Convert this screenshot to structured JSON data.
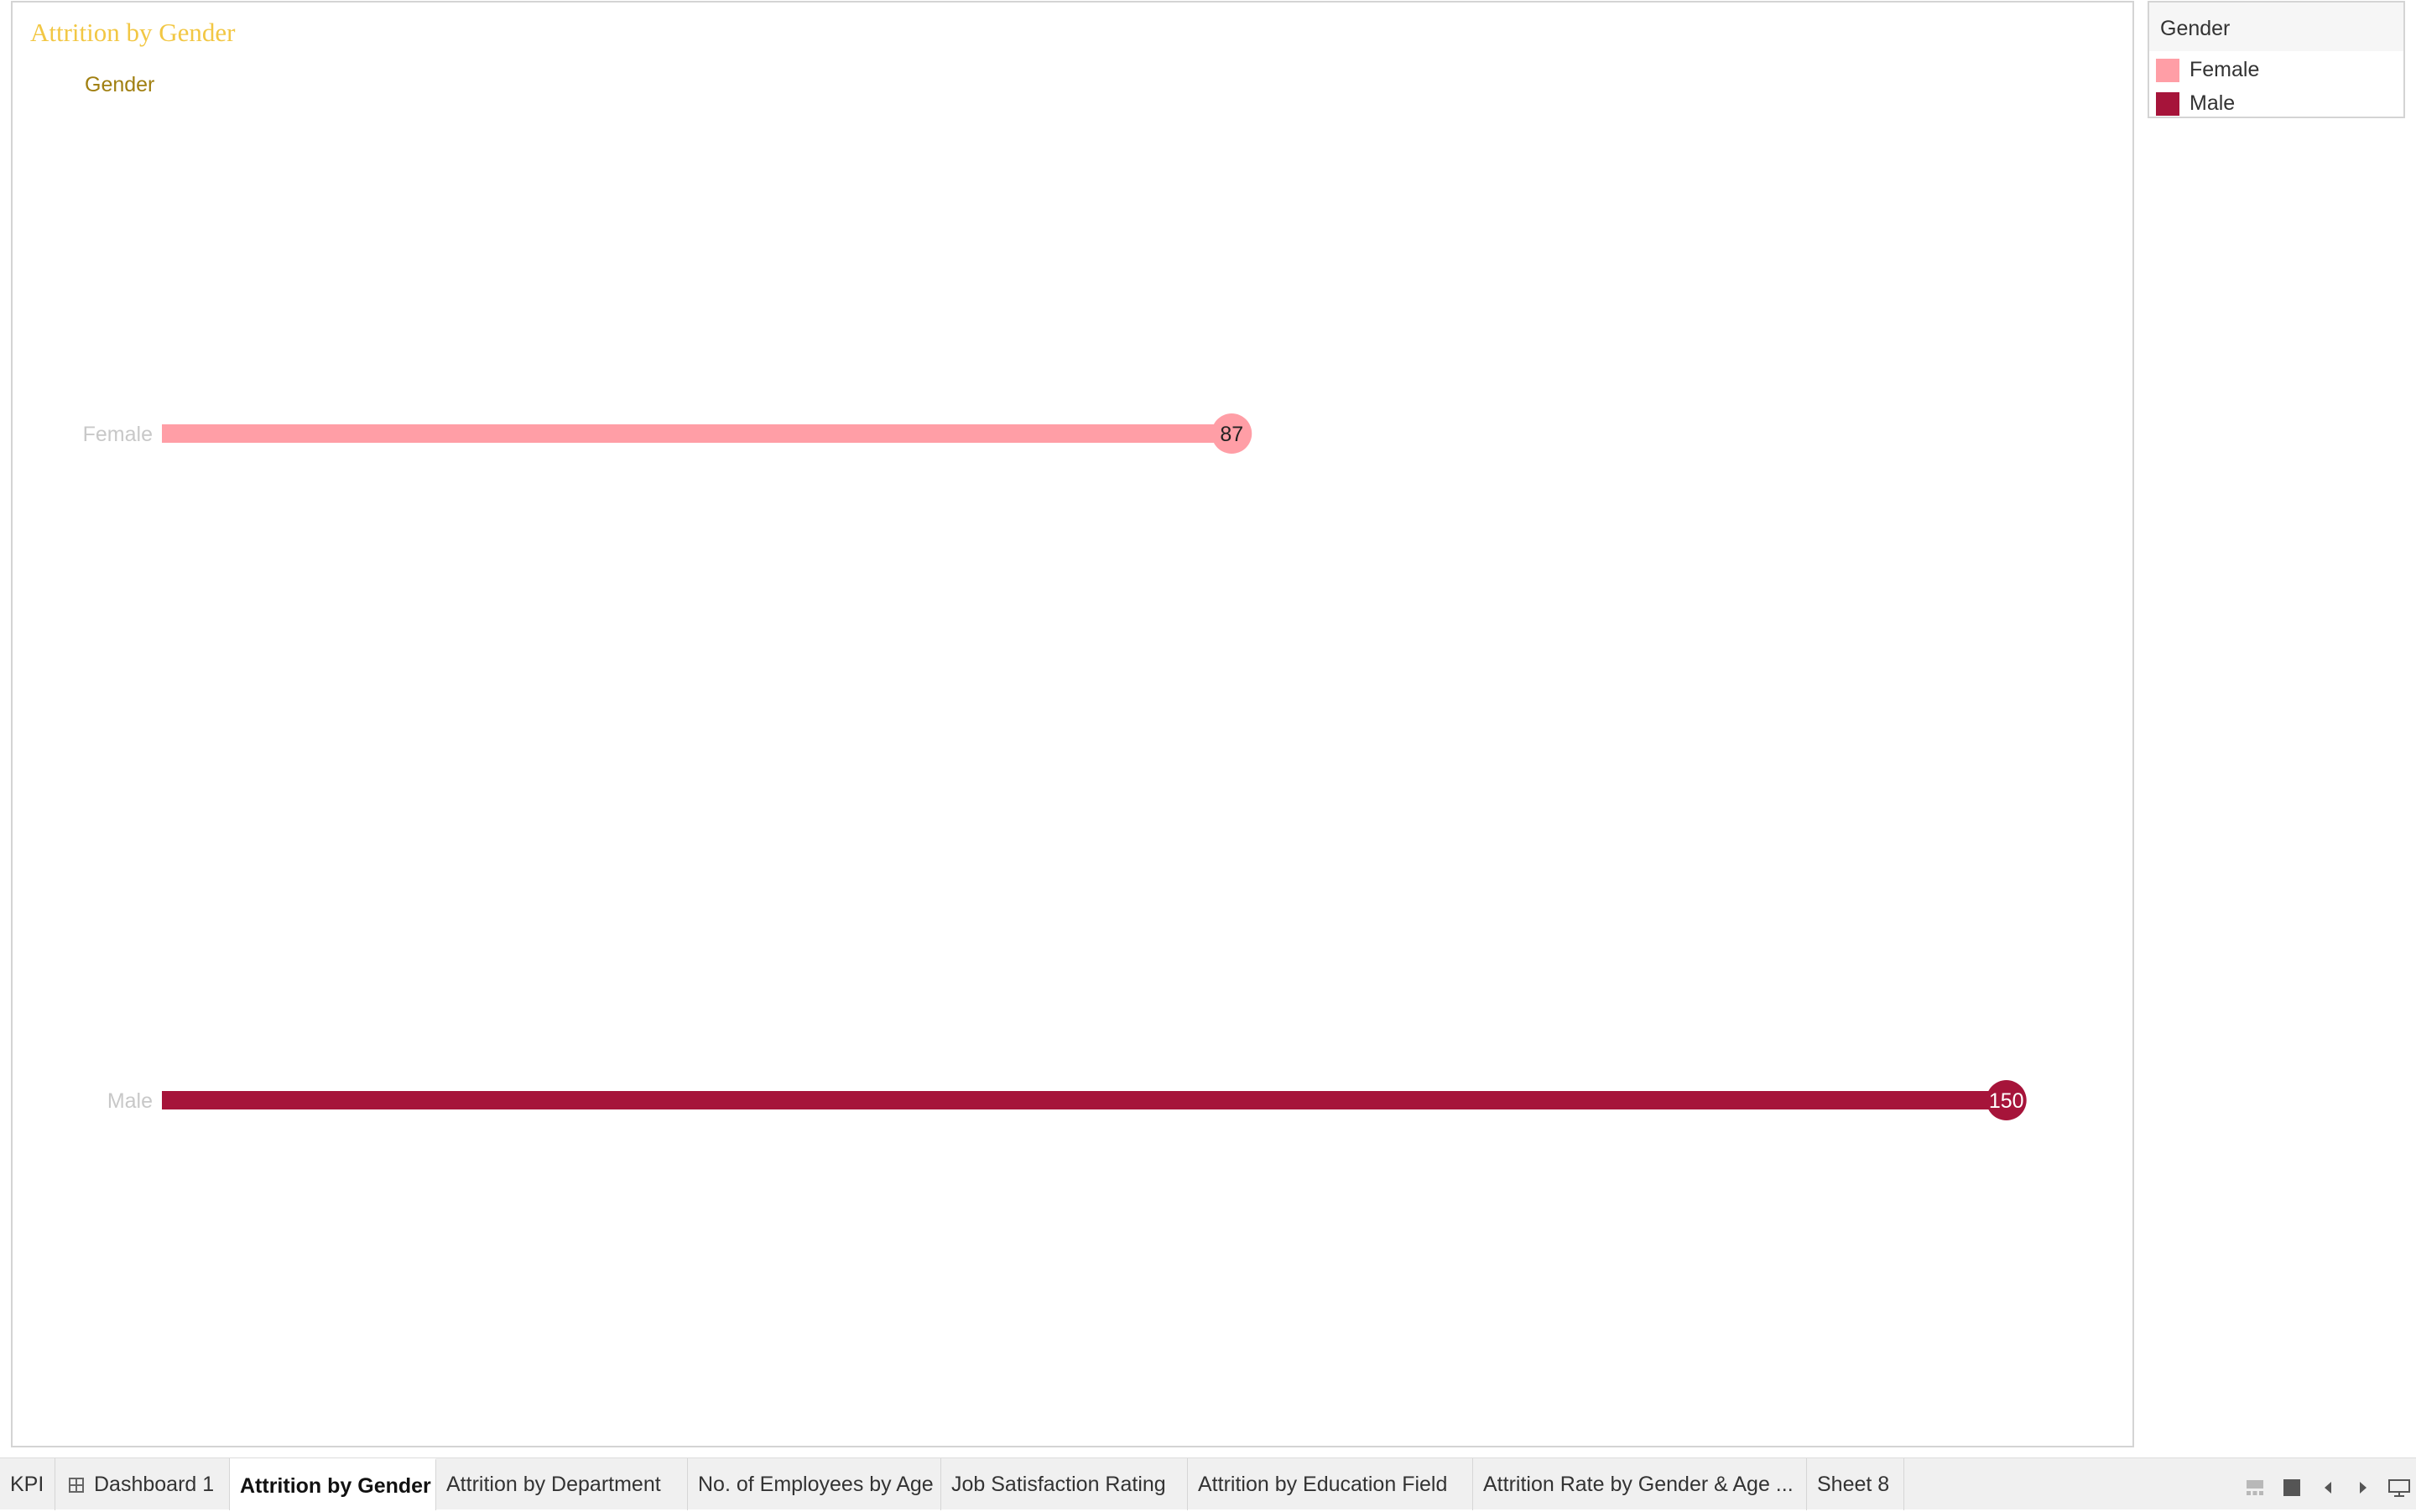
{
  "sheet": {
    "title": "Attrition by Gender",
    "field_header": "Gender"
  },
  "colors": {
    "female": "#ff9ea6",
    "male": "#a6143a",
    "title": "#f2c744"
  },
  "chart_data": {
    "type": "bar",
    "subtype": "lollipop",
    "categories": [
      "Female",
      "Male"
    ],
    "values": [
      87,
      150
    ],
    "xlim": [
      0,
      152
    ],
    "grid": false,
    "legend_placement": "right"
  },
  "legend": {
    "title": "Gender",
    "items": [
      {
        "label": "Female",
        "color": "#ff9ea6"
      },
      {
        "label": "Male",
        "color": "#a6143a"
      }
    ]
  },
  "tabs": [
    {
      "label": "KPI"
    },
    {
      "label": "Dashboard 1",
      "icon": "dashboard-grid-icon"
    },
    {
      "label": "Attrition by Gender",
      "active": true
    },
    {
      "label": "Attrition by Department"
    },
    {
      "label": "No. of Employees by Age"
    },
    {
      "label": "Job Satisfaction Rating"
    },
    {
      "label": "Attrition by Education Field"
    },
    {
      "label": "Attrition Rate by Gender & Age ..."
    },
    {
      "label": "Sheet 8"
    }
  ],
  "bottom_controls": [
    "filmstrip-view-icon",
    "single-view-icon",
    "scroll-left-icon",
    "scroll-right-icon",
    "presentation-mode-icon"
  ]
}
